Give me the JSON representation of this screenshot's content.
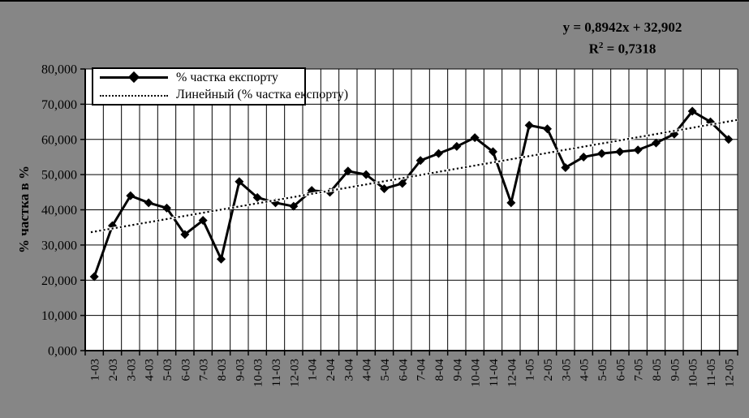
{
  "chart_data": {
    "type": "line",
    "categories": [
      "1-03",
      "2-03",
      "3-03",
      "4-03",
      "5-03",
      "6-03",
      "7-03",
      "8-03",
      "9-03",
      "10-03",
      "11-03",
      "12-03",
      "1-04",
      "2-04",
      "3-04",
      "4-04",
      "5-04",
      "6-04",
      "7-04",
      "8-04",
      "9-04",
      "10-04",
      "11-04",
      "12-04",
      "1-05",
      "2-05",
      "3-05",
      "4-05",
      "5-05",
      "6-05",
      "7-05",
      "8-05",
      "9-05",
      "10-05",
      "11-05",
      "12-05"
    ],
    "series": [
      {
        "name": "% частка експорту",
        "marker": "diamond",
        "color": "#000000",
        "values": [
          21.0,
          35.5,
          44.0,
          42.0,
          40.5,
          33.0,
          37.0,
          26.0,
          48.0,
          43.5,
          42.0,
          41.0,
          45.5,
          45.0,
          51.0,
          50.0,
          46.0,
          47.5,
          54.0,
          56.0,
          58.0,
          60.5,
          56.5,
          42.0,
          64.0,
          63.0,
          52.0,
          55.0,
          56.0,
          56.5,
          57.0,
          59.0,
          61.5,
          68.0,
          65.0,
          60.0
        ]
      }
    ],
    "trendline": {
      "label": "Линейный (% частка експорту)",
      "slope": 0.8942,
      "intercept": 32.902,
      "style": "dotted"
    },
    "title": "",
    "xlabel": "",
    "ylabel": "% частка в %",
    "ylim": [
      0,
      80
    ],
    "ytick_step": 10,
    "ytick_labels": [
      "0,000",
      "10,000",
      "20,000",
      "30,000",
      "40,000",
      "50,000",
      "60,000",
      "70,000",
      "80,000"
    ],
    "grid": true,
    "legend_position": "top-left-inside"
  },
  "annotation": {
    "line1": "y = 0,8942x + 32,902",
    "r_label": "R",
    "r_exponent": "2",
    "r_value": " = 0,7318"
  },
  "colors": {
    "background": "#868686",
    "plot_bg": "#ffffff",
    "series": "#000000",
    "grid": "#000000",
    "legend_bg": "#ffffff"
  }
}
